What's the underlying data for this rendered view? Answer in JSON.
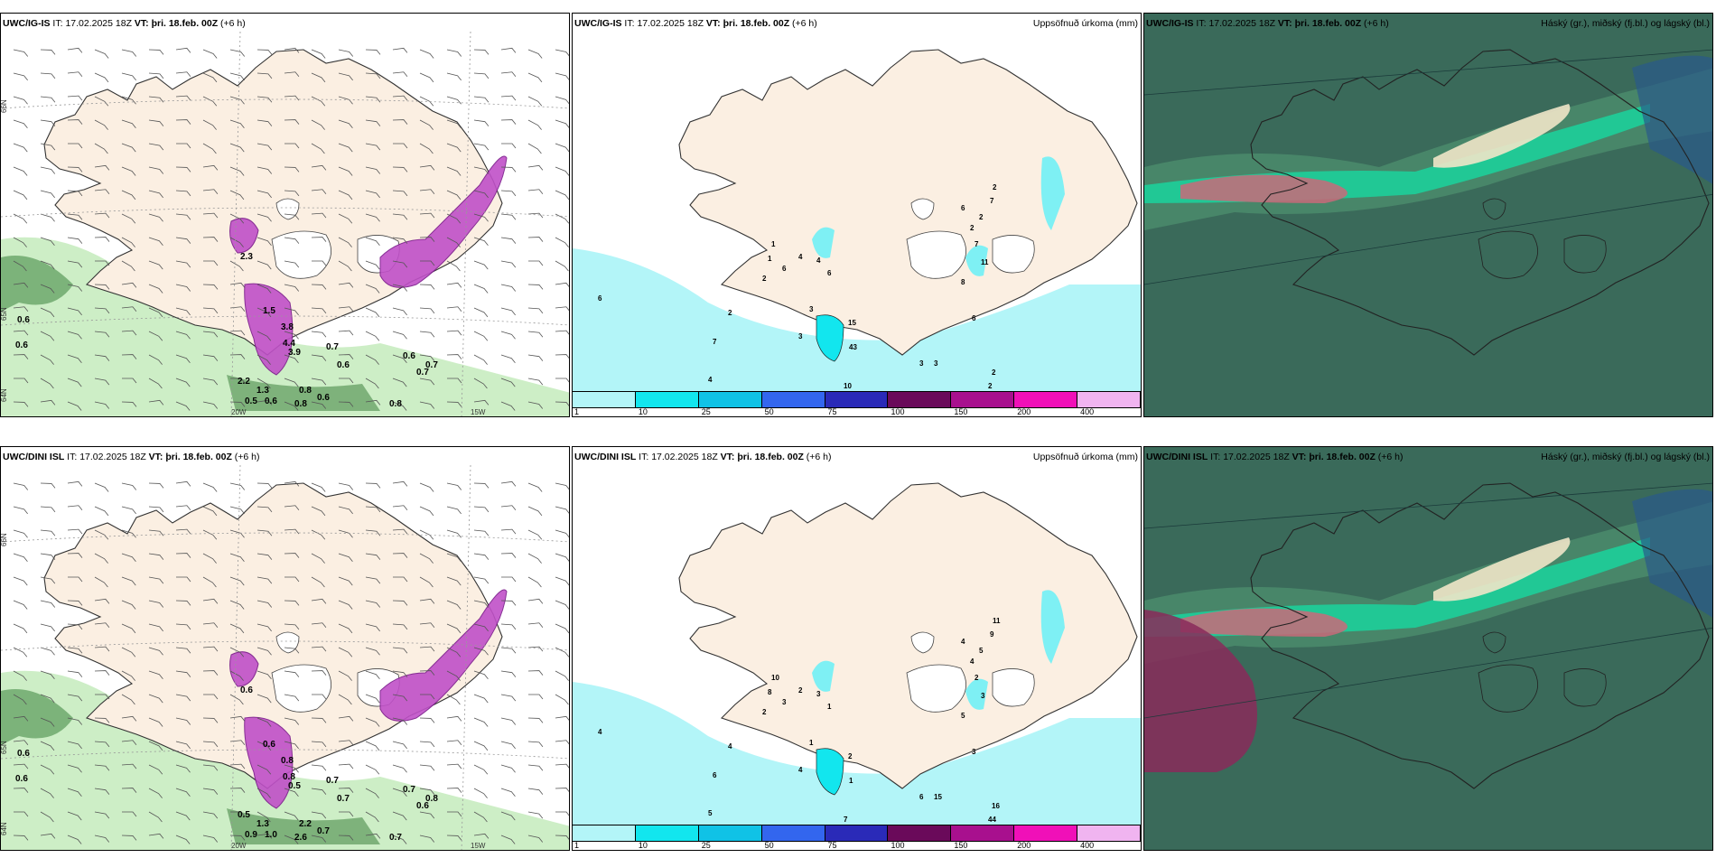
{
  "rows": [
    {
      "model": "UWC/IG-IS",
      "it_label": "IT:",
      "it_value": "17.02.2025 18Z",
      "vt_label": "VT:",
      "vt_value": "þri. 18.feb. 00Z",
      "offset": "(+6 h)",
      "precip_title": "Uppsöfnuð úrkoma (mm)",
      "cloud_title": "Háský (gr.), miðský (fj.bl.) og lágský (bl.)",
      "lat_labels": [
        "66N",
        "65N",
        "64N"
      ],
      "lon_labels": [
        "20W",
        "15W"
      ],
      "wind_values": [
        "0.6",
        "0.6",
        "2.3",
        "1.5",
        "3.8",
        "3.9",
        "4.4",
        "0.7",
        "0.6",
        "0.6",
        "0.7",
        "0.7",
        "0.5",
        "0.6",
        "0.8",
        "0.8",
        "2.2",
        "1.3",
        "0.8",
        "0.6"
      ],
      "precip_values": [
        "6",
        "2",
        "7",
        "4",
        "3",
        "1",
        "2",
        "4",
        "3",
        "6",
        "15",
        "43",
        "11",
        "10",
        "3",
        "3",
        "2",
        "2",
        "6",
        "8",
        "11",
        "7",
        "6",
        "2",
        "2",
        "7",
        "2",
        "1",
        "4",
        "6"
      ]
    },
    {
      "model": "UWC/DINI ISL",
      "it_label": "IT:",
      "it_value": "17.02.2025 18Z",
      "vt_label": "VT:",
      "vt_value": "þri. 18.feb. 00Z",
      "offset": "(+6 h)",
      "precip_title": "Uppsöfnuð úrkoma (mm)",
      "cloud_title": "Háský (gr.), miðský (fj.bl.) og lágský (bl.)",
      "lat_labels": [
        "66N",
        "65N",
        "64N"
      ],
      "lon_labels": [
        "20W",
        "15W"
      ],
      "wind_values": [
        "0.6",
        "0.6",
        "0.6",
        "0.6",
        "0.8",
        "0.5",
        "0.8",
        "0.7",
        "0.7",
        "0.7",
        "0.6",
        "0.8",
        "0.9",
        "1.0",
        "2.6",
        "0.7",
        "0.5",
        "1.3",
        "2.2",
        "0.7"
      ],
      "precip_values": [
        "4",
        "4",
        "6",
        "5",
        "4",
        "8",
        "2",
        "2",
        "1",
        "1",
        "2",
        "1",
        "3",
        "7",
        "6",
        "15",
        "44",
        "16",
        "3",
        "5",
        "3",
        "2",
        "4",
        "4",
        "5",
        "9",
        "11",
        "10",
        "3",
        "3"
      ]
    }
  ],
  "legend": {
    "labels": [
      "1",
      "10",
      "25",
      "50",
      "75",
      "100",
      "150",
      "200",
      "400"
    ],
    "colors": [
      "#b3f5f8",
      "#12e6ee",
      "#10c2e6",
      "#3366ee",
      "#2a2ab8",
      "#6a0a5a",
      "#a8108e",
      "#f010b8",
      "#f0b4f0"
    ]
  },
  "colors": {
    "land": "#fbefe2",
    "sea": "#ffffff",
    "precip_light": "#b3f5f8",
    "wind_green": "#c8ecc0",
    "magenta": "#c050c8",
    "cloud_base": "#3a6a5a",
    "cloud_teal": "#18d8a0"
  }
}
